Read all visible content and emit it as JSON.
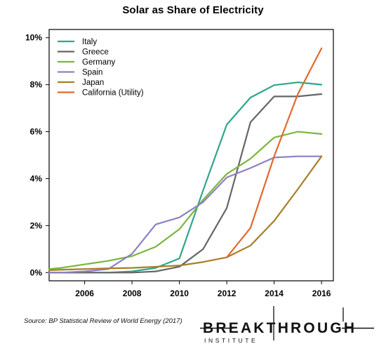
{
  "chart_data": {
    "type": "line",
    "title": "Solar as Share of Electricity",
    "xlabel": "",
    "ylabel": "",
    "xlim": [
      2004.5,
      2016.5
    ],
    "ylim": [
      -0.35,
      10.35
    ],
    "x_ticks": [
      2006,
      2008,
      2010,
      2012,
      2014,
      2016
    ],
    "x_tick_labels": [
      "2006",
      "2008",
      "2010",
      "2012",
      "2014",
      "2016"
    ],
    "y_ticks": [
      0,
      2,
      4,
      6,
      8,
      10
    ],
    "y_tick_labels": [
      "0%",
      "2%",
      "4%",
      "6%",
      "8%",
      "10%"
    ],
    "grid": false,
    "legend_position": "top-left",
    "series": [
      {
        "name": "Italy",
        "color": "#2ea68c",
        "x": [
          2004.5,
          2005,
          2006,
          2007,
          2008,
          2009,
          2010,
          2011,
          2012,
          2013,
          2014,
          2015,
          2016
        ],
        "values": [
          0.0,
          0.0,
          0.0,
          0.0,
          0.05,
          0.2,
          0.6,
          3.5,
          6.3,
          7.45,
          7.98,
          8.1,
          8.0
        ]
      },
      {
        "name": "Greece",
        "color": "#666666",
        "x": [
          2004.5,
          2005,
          2006,
          2007,
          2008,
          2009,
          2010,
          2011,
          2012,
          2013,
          2014,
          2015,
          2016
        ],
        "values": [
          0.0,
          0.0,
          0.0,
          0.0,
          0.0,
          0.05,
          0.25,
          1.0,
          2.75,
          6.4,
          7.5,
          7.5,
          7.6
        ]
      },
      {
        "name": "Germany",
        "color": "#78b83a",
        "x": [
          2004.5,
          2005,
          2006,
          2007,
          2008,
          2009,
          2010,
          2011,
          2012,
          2013,
          2014,
          2015,
          2016
        ],
        "values": [
          0.15,
          0.2,
          0.35,
          0.5,
          0.7,
          1.1,
          1.85,
          3.1,
          4.2,
          4.85,
          5.75,
          6.0,
          5.9
        ]
      },
      {
        "name": "Spain",
        "color": "#8f7fc2",
        "x": [
          2004.5,
          2005,
          2006,
          2007,
          2008,
          2009,
          2010,
          2011,
          2012,
          2013,
          2014,
          2015,
          2016
        ],
        "values": [
          0.0,
          0.0,
          0.05,
          0.15,
          0.8,
          2.05,
          2.35,
          3.0,
          4.05,
          4.45,
          4.9,
          4.95,
          4.95
        ]
      },
      {
        "name": "Japan",
        "color": "#a77e28",
        "x": [
          2004.5,
          2005,
          2006,
          2007,
          2008,
          2009,
          2010,
          2011,
          2012,
          2013,
          2014,
          2015,
          2016
        ],
        "values": [
          0.1,
          0.12,
          0.15,
          0.18,
          0.2,
          0.25,
          0.3,
          0.45,
          0.65,
          1.15,
          2.2,
          3.55,
          4.95
        ]
      },
      {
        "name": "California (Utility)",
        "color": "#e0692e",
        "x": [
          2012,
          2013,
          2014,
          2015,
          2016
        ],
        "values": [
          0.65,
          1.9,
          4.95,
          7.6,
          9.55
        ]
      }
    ]
  },
  "source": {
    "text": "Source: BP Statistical Review of World Energy (2017)"
  },
  "logo": {
    "line1": "BREAKTHROUGH",
    "line2": "INSTITUTE"
  }
}
